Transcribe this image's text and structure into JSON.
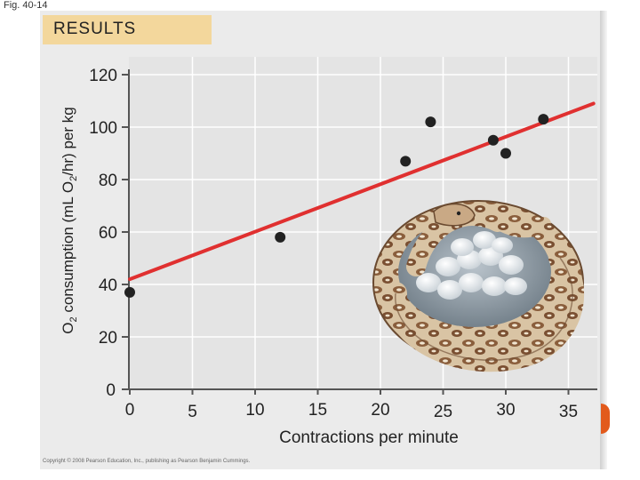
{
  "figure": {
    "label": "Fig. 40-14",
    "results_label": "RESULTS",
    "copyright": "Copyright © 2008 Pearson Education, Inc., publishing as Pearson Benjamin Cummings."
  },
  "chart_data": {
    "type": "scatter",
    "title": "RESULTS",
    "xlabel": "Contractions per minute",
    "ylabel_parts": [
      "O",
      "2",
      " consumption (mL O",
      "2",
      "/hr) per kg"
    ],
    "xlim": [
      0,
      37
    ],
    "ylim": [
      0,
      120
    ],
    "x_ticks": [
      0,
      5,
      10,
      15,
      20,
      25,
      30,
      35
    ],
    "y_ticks": [
      0,
      20,
      40,
      60,
      80,
      100,
      120
    ],
    "grid": true,
    "points": [
      {
        "x": 0,
        "y": 37
      },
      {
        "x": 12,
        "y": 58
      },
      {
        "x": 22,
        "y": 87
      },
      {
        "x": 24,
        "y": 102
      },
      {
        "x": 29,
        "y": 95
      },
      {
        "x": 30,
        "y": 90
      },
      {
        "x": 33,
        "y": 103
      }
    ],
    "trendline": {
      "x": [
        0,
        37
      ],
      "y": [
        42,
        109
      ]
    },
    "colors": {
      "points": "#222222",
      "trendline": "#e03030",
      "axis": "#555555",
      "grid": "#ffffff"
    }
  },
  "illustration": {
    "icon": "python-snake-coiled-around-eggs-icon"
  }
}
